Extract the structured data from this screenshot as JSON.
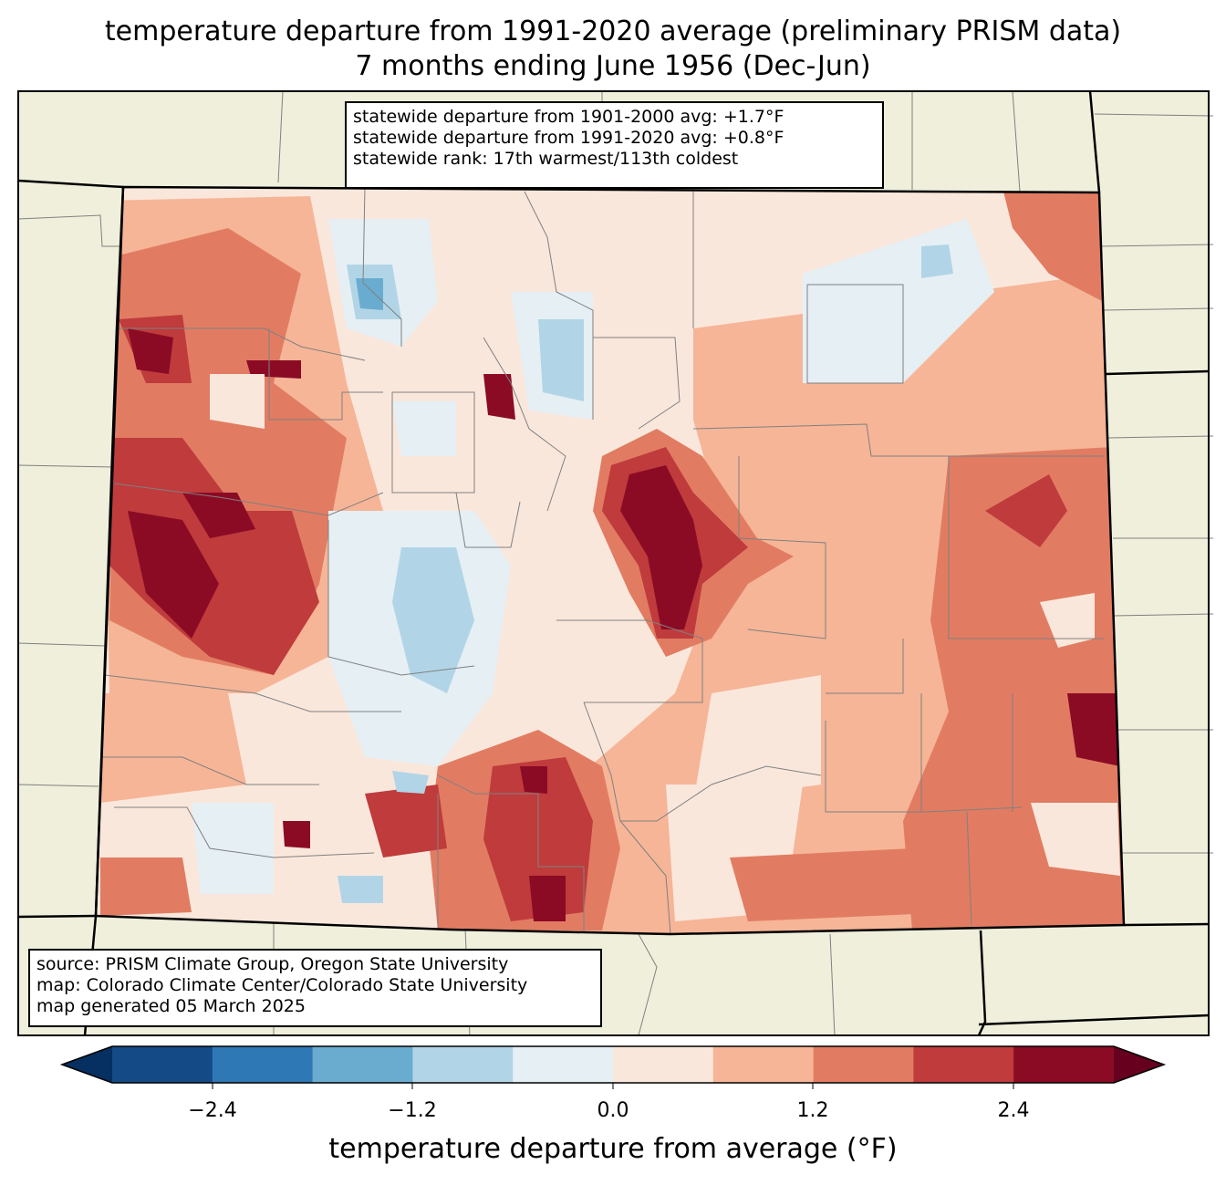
{
  "title": {
    "line1": "temperature departure from 1991-2020 average (preliminary PRISM data)",
    "line2": "7 months ending June 1956 (Dec-Jun)"
  },
  "stats_box": {
    "line1": "statewide departure from 1901-2000 avg: +1.7°F",
    "line2": "statewide departure from 1991-2020 avg: +0.8°F",
    "line3": "statewide rank: 17th warmest/113th coldest"
  },
  "source_box": {
    "line1": "source: PRISM Climate Group, Oregon State University",
    "line2": "map: Colorado Climate Center/Colorado State University",
    "line3": "map generated 05 March 2025"
  },
  "colorbar": {
    "label": "temperature departure from average (°F)",
    "ticks": [
      "−2.4",
      "−1.2",
      "0.0",
      "1.2",
      "2.4"
    ],
    "colors": [
      "#053061",
      "#144a86",
      "#2e78b5",
      "#6aacd0",
      "#b1d5e7",
      "#e5eff4",
      "#fae7dc",
      "#f6b597",
      "#e17c62",
      "#bf3b3c",
      "#8b0b25",
      "#67001f"
    ]
  },
  "map_colors": {
    "land": "#efefdc",
    "state_border": "#000000",
    "county_border": "#808080"
  }
}
